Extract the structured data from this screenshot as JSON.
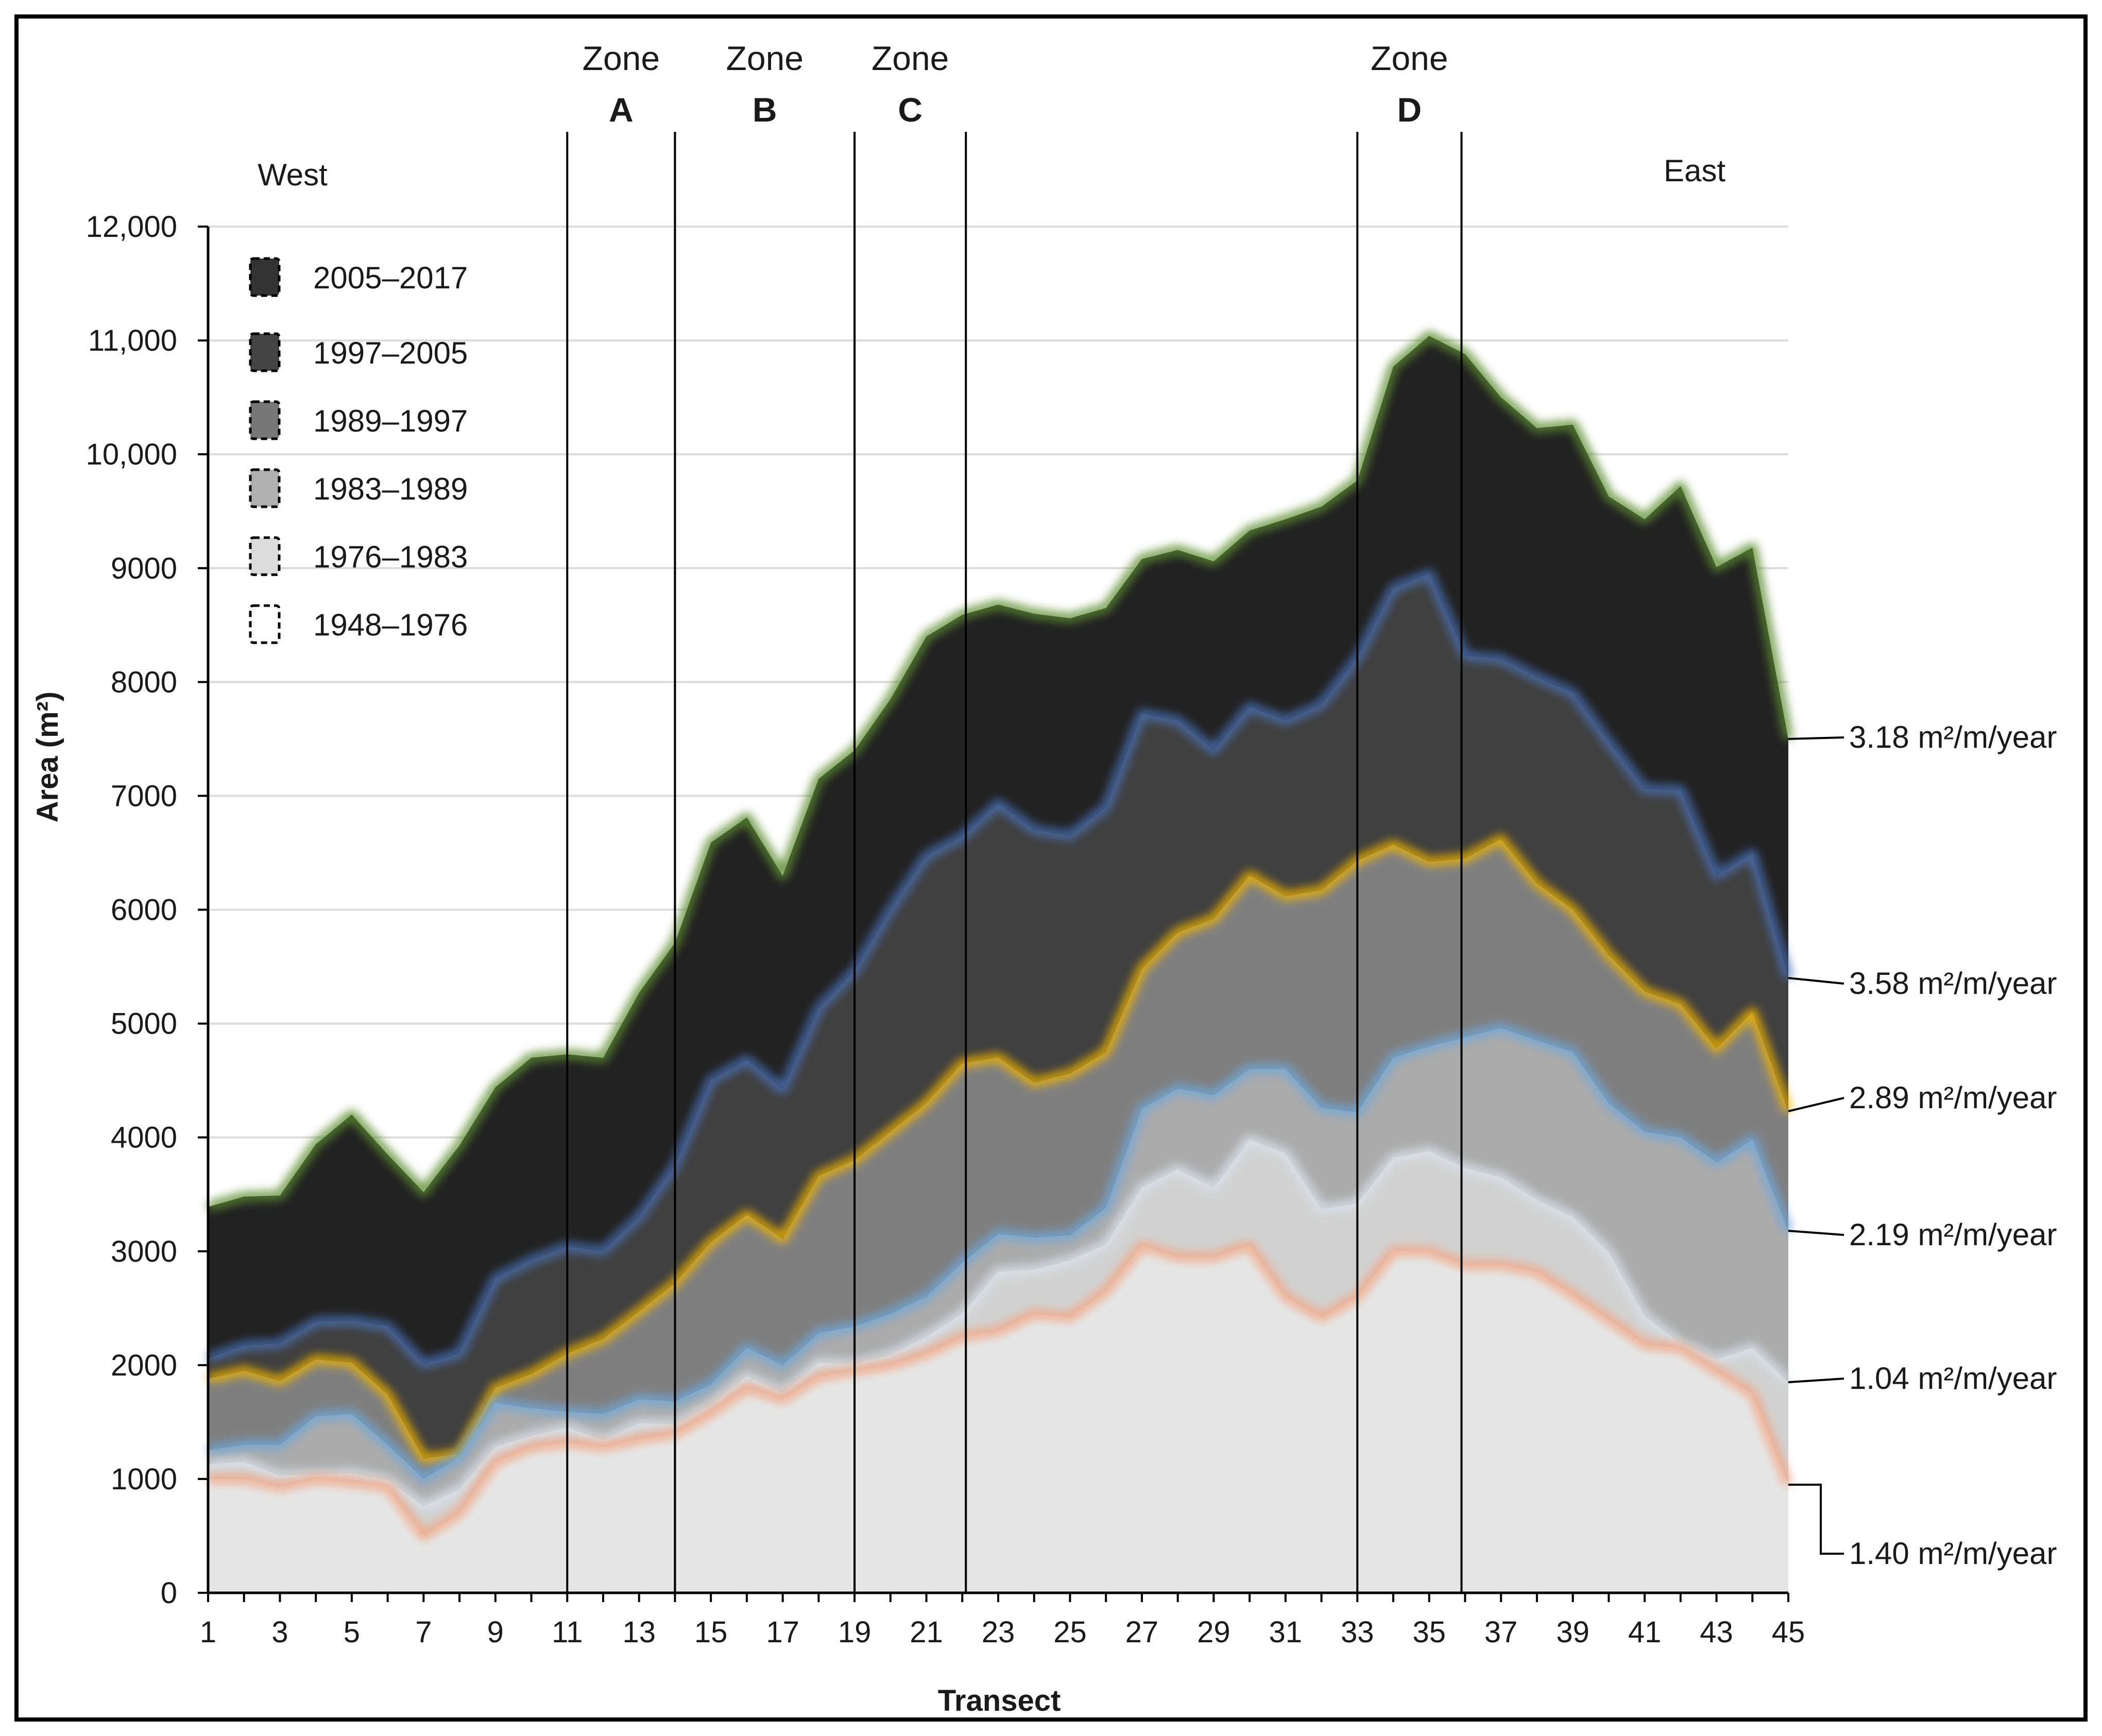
{
  "chart_data": {
    "type": "area",
    "stacking": "cumulative",
    "xlabel": "Transect",
    "ylabel": "Area (m²)",
    "ylim": [
      0,
      12000
    ],
    "xlim": [
      1,
      45
    ],
    "yticks": [
      {
        "value": 0,
        "label": "0"
      },
      {
        "value": 1000,
        "label": "1000"
      },
      {
        "value": 2000,
        "label": "2000"
      },
      {
        "value": 3000,
        "label": "3000"
      },
      {
        "value": 4000,
        "label": "4000"
      },
      {
        "value": 5000,
        "label": "5000"
      },
      {
        "value": 6000,
        "label": "6000"
      },
      {
        "value": 7000,
        "label": "7000"
      },
      {
        "value": 8000,
        "label": "8000"
      },
      {
        "value": 9000,
        "label": "9000"
      },
      {
        "value": 10000,
        "label": "10,000"
      },
      {
        "value": 11000,
        "label": "11,000"
      },
      {
        "value": 12000,
        "label": "12,000"
      }
    ],
    "xticks": [
      {
        "value": 1,
        "label": "1"
      },
      {
        "value": 3,
        "label": "3"
      },
      {
        "value": 5,
        "label": "5"
      },
      {
        "value": 7,
        "label": "7"
      },
      {
        "value": 9,
        "label": "9"
      },
      {
        "value": 11,
        "label": "11"
      },
      {
        "value": 13,
        "label": "13"
      },
      {
        "value": 15,
        "label": "15"
      },
      {
        "value": 17,
        "label": "17"
      },
      {
        "value": 19,
        "label": "19"
      },
      {
        "value": 21,
        "label": "21"
      },
      {
        "value": 23,
        "label": "23"
      },
      {
        "value": 25,
        "label": "25"
      },
      {
        "value": 27,
        "label": "27"
      },
      {
        "value": 29,
        "label": "29"
      },
      {
        "value": 31,
        "label": "31"
      },
      {
        "value": 33,
        "label": "33"
      },
      {
        "value": 35,
        "label": "35"
      },
      {
        "value": 37,
        "label": "37"
      },
      {
        "value": 39,
        "label": "39"
      },
      {
        "value": 41,
        "label": "41"
      },
      {
        "value": 43,
        "label": "43"
      },
      {
        "value": 45,
        "label": "45"
      }
    ],
    "grid": true,
    "x": [
      1,
      2,
      3,
      4,
      5,
      6,
      7,
      8,
      9,
      10,
      11,
      12,
      13,
      14,
      15,
      16,
      17,
      18,
      19,
      20,
      21,
      22,
      23,
      24,
      25,
      26,
      27,
      28,
      29,
      30,
      31,
      32,
      33,
      34,
      35,
      36,
      37,
      38,
      39,
      40,
      41,
      42,
      43,
      44,
      45
    ],
    "series": [
      {
        "name": "1948–1976",
        "fill": "#e6e6e6",
        "glow": "#f4a582",
        "rate": "1.40 m²/m/year",
        "values": [
          1000,
          1000,
          930,
          1000,
          970,
          930,
          500,
          700,
          1150,
          1280,
          1320,
          1280,
          1350,
          1400,
          1580,
          1800,
          1700,
          1900,
          1950,
          2000,
          2100,
          2250,
          2300,
          2450,
          2420,
          2650,
          3050,
          2950,
          2950,
          3050,
          2600,
          2420,
          2600,
          3000,
          3000,
          2880,
          2880,
          2820,
          2620,
          2400,
          2180,
          2150,
          1950,
          1750,
          950
        ]
      },
      {
        "name": "1976–1983",
        "fill": "#d1d1d1",
        "glow": "#d9e3ec",
        "rate": "1.04 m²/m/year",
        "values": [
          1130,
          1150,
          1030,
          1040,
          1050,
          990,
          760,
          910,
          1280,
          1380,
          1450,
          1340,
          1490,
          1480,
          1650,
          1900,
          1760,
          2020,
          2010,
          2090,
          2250,
          2450,
          2820,
          2840,
          2920,
          3060,
          3560,
          3720,
          3560,
          3980,
          3860,
          3370,
          3420,
          3820,
          3880,
          3730,
          3650,
          3450,
          3300,
          2990,
          2430,
          2190,
          2050,
          2150,
          1850
        ]
      },
      {
        "name": "1983–1989",
        "fill": "#ababab",
        "glow": "#6fa8dc",
        "rate": "2.19 m²/m/year",
        "values": [
          1250,
          1300,
          1300,
          1550,
          1570,
          1300,
          1000,
          1190,
          1670,
          1620,
          1590,
          1570,
          1700,
          1680,
          1830,
          2150,
          2000,
          2280,
          2340,
          2450,
          2600,
          2900,
          3150,
          3120,
          3140,
          3380,
          4250,
          4430,
          4370,
          4600,
          4600,
          4260,
          4220,
          4700,
          4800,
          4880,
          4960,
          4850,
          4750,
          4300,
          4050,
          4000,
          3780,
          3980,
          3180
        ]
      },
      {
        "name": "1989–1997",
        "fill": "#7f7f7f",
        "glow": "#f0b400",
        "rate": "2.89 m²/m/year",
        "values": [
          1880,
          1950,
          1860,
          2050,
          2020,
          1740,
          1180,
          1220,
          1800,
          1920,
          2100,
          2230,
          2470,
          2720,
          3080,
          3320,
          3110,
          3660,
          3800,
          4050,
          4300,
          4650,
          4700,
          4480,
          4560,
          4750,
          5480,
          5800,
          5920,
          6300,
          6120,
          6170,
          6430,
          6570,
          6420,
          6450,
          6620,
          6230,
          6000,
          5600,
          5280,
          5170,
          4780,
          5100,
          4230
        ]
      },
      {
        "name": "1997–2005",
        "fill": "#404040",
        "glow": "#4a6fb3",
        "rate": "3.58 m²/m/year",
        "values": [
          2060,
          2170,
          2190,
          2380,
          2390,
          2340,
          2010,
          2100,
          2760,
          2920,
          3040,
          3000,
          3300,
          3750,
          4500,
          4680,
          4420,
          5130,
          5460,
          6000,
          6470,
          6640,
          6930,
          6700,
          6650,
          6900,
          7720,
          7660,
          7400,
          7780,
          7660,
          7800,
          8210,
          8820,
          8950,
          8230,
          8200,
          8040,
          7900,
          7470,
          7060,
          7050,
          6300,
          6490,
          5400
        ]
      },
      {
        "name": "2005–2017",
        "fill": "#222222",
        "glow": "#5a8a2e",
        "rate": "3.18 m²/m/year",
        "values": [
          3390,
          3480,
          3490,
          3940,
          4200,
          3850,
          3520,
          3930,
          4440,
          4700,
          4730,
          4700,
          5270,
          5710,
          6590,
          6810,
          6300,
          7150,
          7400,
          7850,
          8400,
          8590,
          8680,
          8600,
          8560,
          8650,
          9080,
          9160,
          9060,
          9330,
          9430,
          9540,
          9770,
          10770,
          11040,
          10880,
          10500,
          10230,
          10260,
          9630,
          9430,
          9720,
          9010,
          9180,
          7500
        ]
      }
    ],
    "zones": [
      {
        "word": "Zone",
        "letter": "A",
        "start": 11,
        "end": 14
      },
      {
        "word": "Zone",
        "letter": "B",
        "start": 14,
        "end": 19
      },
      {
        "word": "Zone",
        "letter": "C",
        "start": 19,
        "end": 22.1
      },
      {
        "word": "Zone",
        "letter": "D",
        "start": 33,
        "end": 35.9
      }
    ],
    "west_label": "West",
    "east_label": "East",
    "legend_order": [
      "2005–2017",
      "1997–2005",
      "1989–1997",
      "1983–1989",
      "1976–1983",
      "1948–1976"
    ],
    "legend_position": "top-left"
  }
}
